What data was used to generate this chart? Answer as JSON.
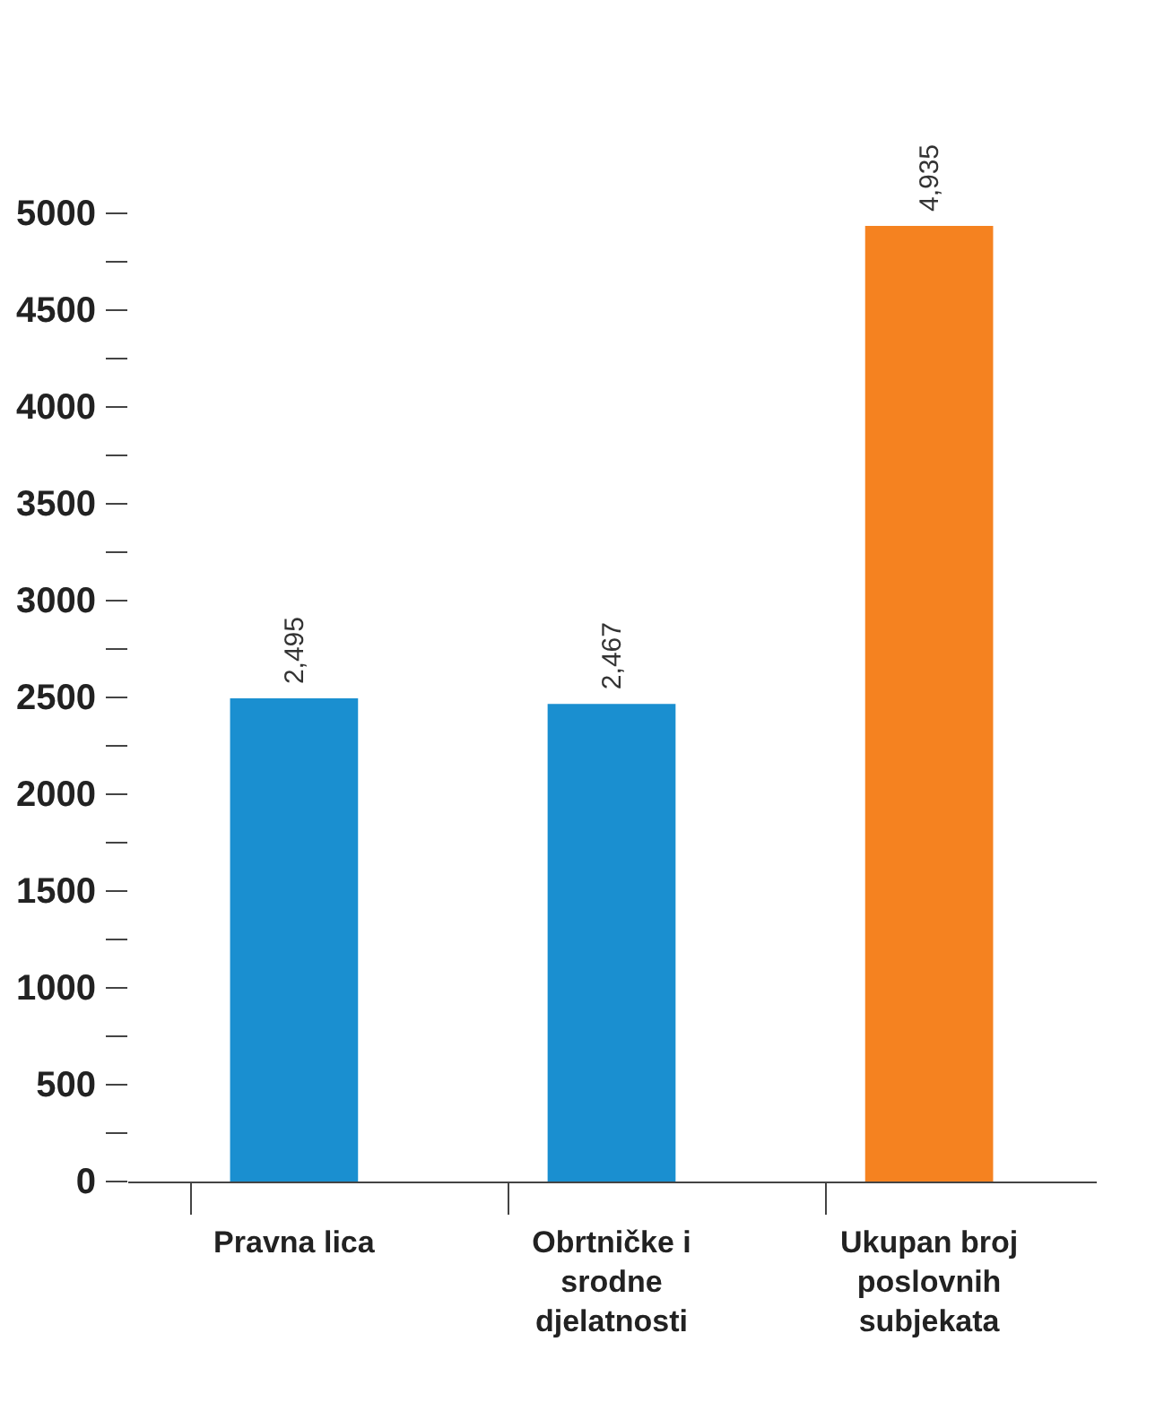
{
  "chart_data": {
    "type": "bar",
    "categories": [
      "Pravna lica",
      "Obrtničke i srodne djelatnosti",
      "Ukupan broj poslovnih subjekata"
    ],
    "values": [
      2495,
      2467,
      4935
    ],
    "colors": [
      "#1a8fd0",
      "#1a8fd0",
      "#f58220"
    ],
    "value_labels": [
      "2,495",
      "2,467",
      "4,935"
    ],
    "ylim": [
      0,
      5000
    ],
    "yticks": [
      0,
      {
        "value": 250,
        "label": null
      },
      500,
      {
        "value": 750,
        "label": null
      },
      1000,
      {
        "value": 1250,
        "label": null
      },
      1500,
      {
        "value": 1750,
        "label": null
      },
      2000,
      {
        "value": 2250,
        "label": null
      },
      2500,
      {
        "value": 2750,
        "label": null
      },
      3000,
      {
        "value": 3250,
        "label": null
      },
      3500,
      {
        "value": 3750,
        "label": null
      },
      4000,
      {
        "value": 4250,
        "label": null
      },
      4500,
      {
        "value": 4750,
        "label": null
      },
      5000
    ],
    "grid": false
  }
}
